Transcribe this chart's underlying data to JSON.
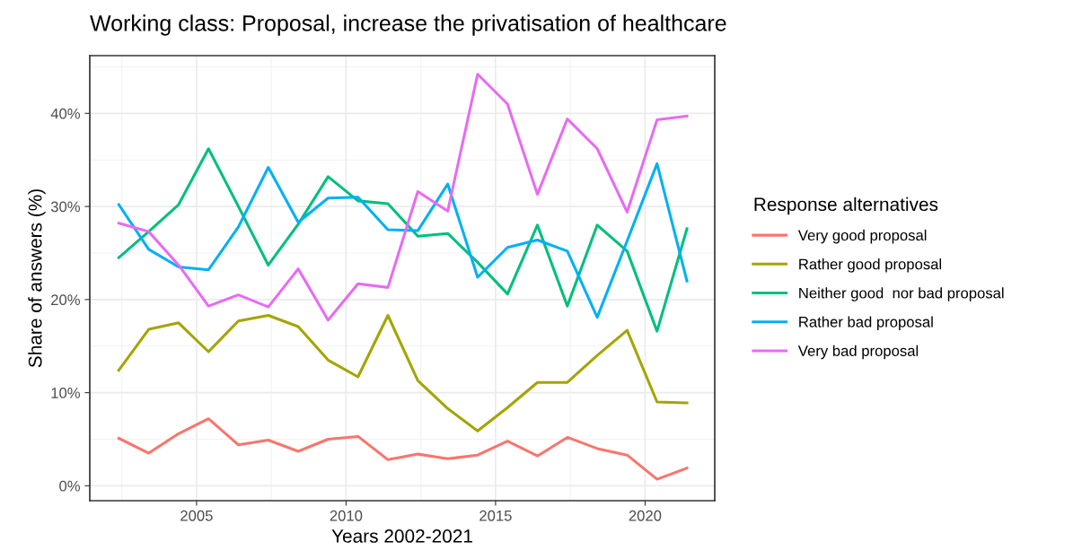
{
  "chart_data": {
    "type": "line",
    "title": "Working class: Proposal, increase the privatisation of healthcare",
    "xlabel": "Years 2002-2021",
    "ylabel": "Share of answers (%)",
    "legend_title": "Response alternatives",
    "x": [
      2002.4,
      2003.4,
      2004.4,
      2005.4,
      2006.4,
      2007.4,
      2008.4,
      2009.4,
      2010.4,
      2011.4,
      2012.4,
      2013.4,
      2014.4,
      2015.4,
      2016.4,
      2017.4,
      2018.4,
      2019.4,
      2020.4,
      2021.4
    ],
    "series": [
      {
        "name": "Very good proposal",
        "color": "#f8766d",
        "values": [
          5.1,
          3.5,
          5.6,
          7.2,
          4.4,
          4.9,
          3.7,
          5.0,
          5.3,
          2.8,
          3.4,
          2.9,
          3.3,
          4.8,
          3.2,
          5.2,
          4.0,
          3.3,
          0.7,
          1.9
        ]
      },
      {
        "name": "Rather good proposal",
        "color": "#a3a500",
        "values": [
          12.4,
          16.8,
          17.5,
          14.4,
          17.7,
          18.3,
          17.1,
          13.5,
          11.7,
          18.3,
          11.3,
          8.3,
          5.9,
          8.4,
          11.1,
          11.1,
          14.0,
          16.7,
          9.0,
          8.9
        ]
      },
      {
        "name": "Neither good  nor bad proposal",
        "color": "#00bf7d",
        "values": [
          24.5,
          27.3,
          30.2,
          36.2,
          30.0,
          23.7,
          28.1,
          33.2,
          30.6,
          30.3,
          26.8,
          27.1,
          24.0,
          20.6,
          28.0,
          19.3,
          28.0,
          25.2,
          16.6,
          27.6
        ]
      },
      {
        "name": "Rather bad proposal",
        "color": "#00b0f6",
        "values": [
          30.2,
          25.4,
          23.5,
          23.2,
          27.8,
          34.2,
          28.3,
          30.9,
          31.0,
          27.5,
          27.4,
          32.4,
          22.4,
          25.6,
          26.4,
          25.2,
          18.1,
          26.3,
          34.6,
          22.0
        ]
      },
      {
        "name": "Very bad proposal",
        "color": "#e76bf3",
        "values": [
          28.2,
          27.3,
          23.7,
          19.3,
          20.5,
          19.2,
          23.3,
          17.8,
          21.7,
          21.3,
          31.6,
          29.5,
          44.2,
          41.0,
          31.3,
          39.4,
          36.2,
          29.4,
          39.3,
          39.7
        ]
      }
    ],
    "xlim": [
      2001.43,
      2022.33
    ],
    "ylim": [
      -1.6,
      46.2
    ],
    "xticks": [
      2005,
      2010,
      2015,
      2020
    ],
    "yticks": [
      {
        "value": 0,
        "label": "0%"
      },
      {
        "value": 10,
        "label": "10%"
      },
      {
        "value": 20,
        "label": "20%"
      },
      {
        "value": 30,
        "label": "30%"
      },
      {
        "value": 40,
        "label": "40%"
      }
    ],
    "grid": true,
    "legend": "right",
    "marker": "none",
    "line_style": "solid"
  }
}
